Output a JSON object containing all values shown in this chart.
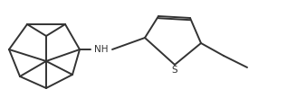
{
  "background_color": "#ffffff",
  "line_color": "#333333",
  "line_width": 1.4,
  "text_color": "#333333",
  "nh_label": "NH",
  "s_label": "S",
  "font_size": 7.5
}
